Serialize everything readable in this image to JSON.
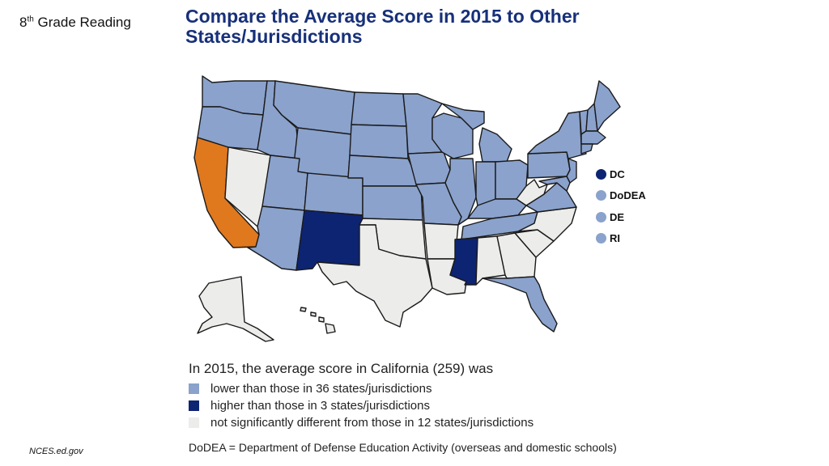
{
  "header": {
    "grade_prefix": "8",
    "grade_sup": "th",
    "grade_suffix": " Grade Reading",
    "title_line1": "Compare the Average Score in 2015 to Other",
    "title_line2": "States/Jurisdictions"
  },
  "colors": {
    "lower": "#8aa2cc",
    "higher": "#0d2473",
    "not_sig": "#ececea",
    "focus": "#e0781e"
  },
  "map": {
    "focus_state": "California",
    "states": {
      "WA": "lower",
      "OR": "lower",
      "CA": "focus",
      "NV": "not_sig",
      "ID": "lower",
      "MT": "lower",
      "WY": "lower",
      "UT": "lower",
      "AZ": "lower",
      "CO": "lower",
      "NM": "higher",
      "ND": "lower",
      "SD": "lower",
      "NE": "lower",
      "KS": "lower",
      "OK": "not_sig",
      "TX": "not_sig",
      "MN": "lower",
      "IA": "lower",
      "MO": "lower",
      "AR": "not_sig",
      "LA": "not_sig",
      "WI": "lower",
      "IL": "lower",
      "MI": "lower",
      "IN": "lower",
      "OH": "lower",
      "KY": "lower",
      "TN": "lower",
      "MS": "higher",
      "AL": "not_sig",
      "GA": "not_sig",
      "FL": "lower",
      "SC": "not_sig",
      "NC": "not_sig",
      "VA": "lower",
      "WV": "not_sig",
      "PA": "lower",
      "NY": "lower",
      "NJ": "lower",
      "MD": "lower",
      "VT": "lower",
      "NH": "lower",
      "ME": "lower",
      "MA": "lower",
      "CT": "lower",
      "AK": "not_sig",
      "HI": "not_sig"
    }
  },
  "side_legend": [
    {
      "label": "DC",
      "color": "#0d2473"
    },
    {
      "label": "DoDEA",
      "color": "#8aa2cc"
    },
    {
      "label": "DE",
      "color": "#8aa2cc"
    },
    {
      "label": "RI",
      "color": "#8aa2cc"
    }
  ],
  "legend": {
    "intro": "In 2015, the average score in California (259) was",
    "rows": [
      {
        "label": "lower than those in 36 states/jurisdictions",
        "color": "#8aa2cc"
      },
      {
        "label": "higher than those in 3 states/jurisdictions",
        "color": "#0d2473"
      },
      {
        "label": "not significantly different from those in 12 states/jurisdictions",
        "color": "#ececea"
      }
    ]
  },
  "footnote": "DoDEA = Department of Defense Education Activity (overseas and domestic schools)",
  "source": "NCES.ed.gov"
}
